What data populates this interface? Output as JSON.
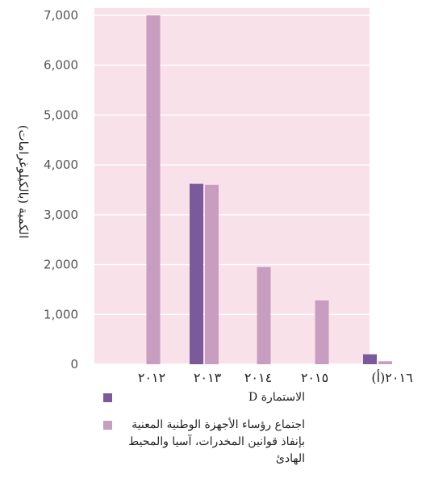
{
  "chart_data": {
    "type": "bar",
    "ylabel": "الكمية (بالكيلوغرامات)",
    "xlabel": "",
    "title": "",
    "ylim": [
      0,
      7000
    ],
    "yticks": [
      0,
      1000,
      2000,
      3000,
      4000,
      5000,
      6000,
      7000
    ],
    "ytick_labels": [
      "0",
      "1,000",
      "2,000",
      "3,000",
      "4,000",
      "5,000",
      "6,000",
      "7,000"
    ],
    "categories": [
      "٢٠١٢",
      "٢٠١٣",
      "٢٠١٤",
      "٢٠١٥",
      "٢٠١٦(أ)"
    ],
    "series": [
      {
        "name": "الاستمارة D",
        "color": "#7b5a9c",
        "values": [
          null,
          3620,
          null,
          null,
          200
        ]
      },
      {
        "name": "اجتماع رؤساء الأجهزة الوطنية المعنية بإنفاذ قوانين المخدرات، آسيا والمحيط الهادئ",
        "color": "#c79ec0",
        "values": [
          7000,
          3600,
          1950,
          1280,
          60
        ]
      }
    ],
    "plot_background": "#f9e1ea",
    "gridline_color": "#ffffff",
    "grid": true,
    "legend_position": "bottom"
  },
  "legend": {
    "items": [
      {
        "label": "الاستمارة D"
      },
      {
        "label": "اجتماع رؤساء الأجهزة الوطنية المعنية بإنفاذ قوانين المخدرات، آسيا والمحيط الهادئ"
      }
    ]
  }
}
